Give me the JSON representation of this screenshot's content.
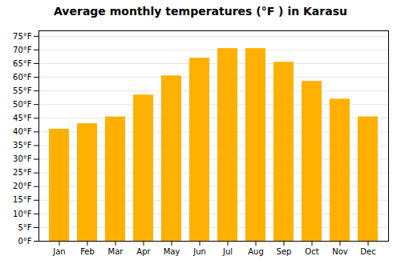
{
  "chart_data": {
    "type": "bar",
    "title": "Average monthly temperatures (°F ) in Karasu",
    "categories": [
      "Jan",
      "Feb",
      "Mar",
      "Apr",
      "May",
      "Jun",
      "Jul",
      "Aug",
      "Sep",
      "Oct",
      "Nov",
      "Dec"
    ],
    "values": [
      41,
      43,
      45.5,
      53.5,
      60.5,
      67,
      70.5,
      70.5,
      65.5,
      58.5,
      52,
      45.5
    ],
    "color": "#FFB000",
    "ylim": [
      0,
      77
    ],
    "yticks": [
      {
        "value": 0,
        "label": "0°F"
      },
      {
        "value": 5,
        "label": "5°F"
      },
      {
        "value": 10,
        "label": "10°F"
      },
      {
        "value": 15,
        "label": "15°F"
      },
      {
        "value": 20,
        "label": "20°F"
      },
      {
        "value": 25,
        "label": "25°F"
      },
      {
        "value": 30,
        "label": "30°F"
      },
      {
        "value": 35,
        "label": "35°F"
      },
      {
        "value": 40,
        "label": "40°F"
      },
      {
        "value": 45,
        "label": "45°F"
      },
      {
        "value": 50,
        "label": "50°F"
      },
      {
        "value": 55,
        "label": "55°F"
      },
      {
        "value": 60,
        "label": "60°F"
      },
      {
        "value": 65,
        "label": "65°F"
      },
      {
        "value": 70,
        "label": "70°F"
      },
      {
        "value": 75,
        "label": "75°F"
      }
    ],
    "grid": true
  }
}
